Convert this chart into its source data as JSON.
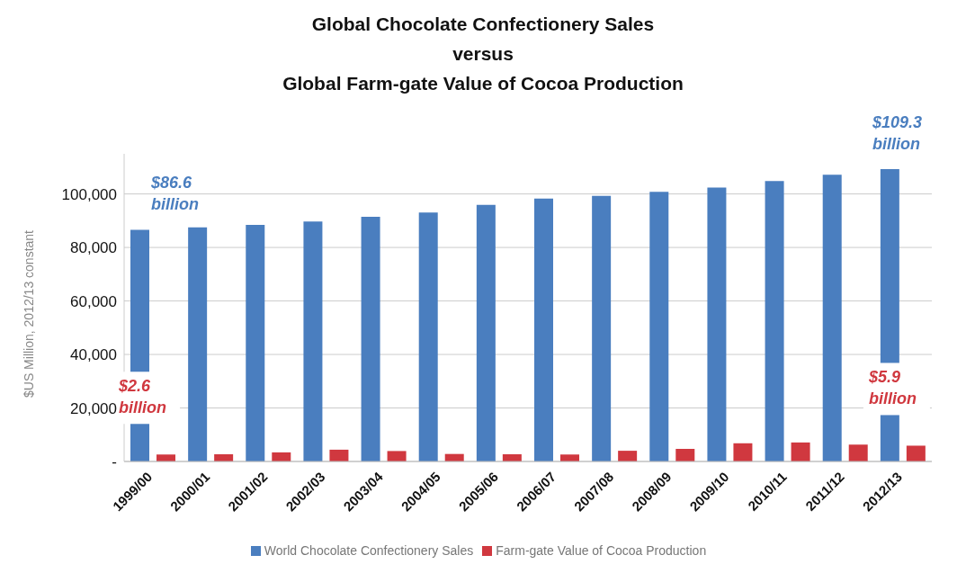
{
  "chart_data": {
    "type": "bar",
    "title": "Global Chocolate Confectionery Sales\nversus\nGlobal Farm-gate Value of Cocoa Production",
    "ylabel": "$US Million, 2012/13 constant",
    "categories": [
      "1999/00",
      "2000/01",
      "2001/02",
      "2002/03",
      "2003/04",
      "2004/05",
      "2005/06",
      "2006/07",
      "2007/08",
      "2008/09",
      "2009/10",
      "2010/11",
      "2011/12",
      "2012/13"
    ],
    "series": [
      {
        "name": "World Chocolate Confectionery Sales",
        "color": "#4a7ebf",
        "values": [
          86600,
          87500,
          88400,
          89700,
          91500,
          93100,
          95900,
          98300,
          99300,
          100800,
          102400,
          104800,
          107200,
          109300
        ]
      },
      {
        "name": "Farm-gate Value of Cocoa Production",
        "color": "#d0383f",
        "values": [
          2600,
          2700,
          3400,
          4400,
          3900,
          2800,
          2700,
          2600,
          4000,
          4700,
          6800,
          7100,
          6300,
          5900
        ]
      }
    ],
    "annotations": [
      {
        "text": "$86.6 billion",
        "x": "1999/00",
        "y": 86600
      },
      {
        "text": "$109.3 billion",
        "x": "2012/13",
        "y": 109300
      },
      {
        "text": "$2.6 billion",
        "x": "1999/00",
        "y": 2600
      },
      {
        "text": "$5.9 billion",
        "x": "2012/13",
        "y": 5900
      }
    ],
    "ylim": [
      0,
      115000
    ],
    "yticks": [
      {
        "value": 0,
        "label": "-"
      },
      {
        "value": 20000,
        "label": "20,000"
      },
      {
        "value": 40000,
        "label": "40,000"
      },
      {
        "value": 60000,
        "label": "60,000"
      },
      {
        "value": 80000,
        "label": "80,000"
      },
      {
        "value": 100000,
        "label": "100,000"
      }
    ],
    "grid": "y",
    "legend": "bottom"
  }
}
